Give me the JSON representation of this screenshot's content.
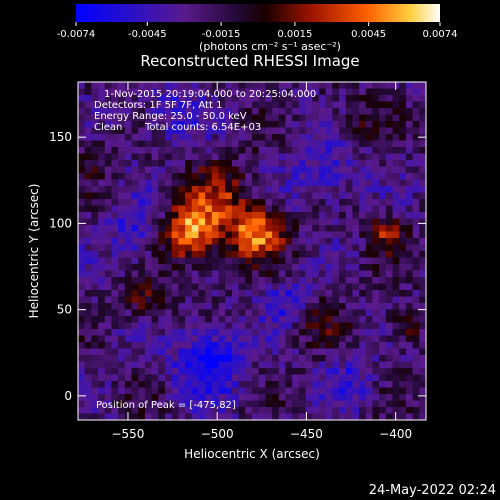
{
  "colorbar": {
    "tick_labels": [
      "-0.0074",
      "-0.0045",
      "-0.0015",
      "0.0015",
      "0.0045",
      "0.0074"
    ],
    "tick_values": [
      -0.0074,
      -0.0045,
      -0.0015,
      0.0015,
      0.0045,
      0.0074
    ],
    "range": [
      -0.0074,
      0.0074
    ],
    "unit_label": "(photons cm⁻² s⁻¹ asec⁻²)",
    "colors": [
      "#0000ff",
      "#3c0a78",
      "#5a1a8c",
      "#000000",
      "#8c1000",
      "#ff5000",
      "#ffc000",
      "#ffffff"
    ]
  },
  "chart_data": {
    "type": "heatmap",
    "title": "Reconstructed RHESSI Image",
    "xlabel": "Heliocentric X (arcsec)",
    "ylabel": "Heliocentric Y (arcsec)",
    "xlim": [
      -578,
      -383
    ],
    "ylim": [
      -14,
      182
    ],
    "x_ticks": [
      -550,
      -500,
      -450,
      -400
    ],
    "x_tick_labels": [
      "−550",
      "−500",
      "−450",
      "−400"
    ],
    "y_ticks": [
      0,
      50,
      100,
      150
    ],
    "y_tick_labels": [
      "0",
      "50",
      "100",
      "150"
    ],
    "annotations": {
      "time_range": "1-Nov-2015 20:19:04.000 to 20:25:04.000",
      "detectors": "Detectors: 1F 5F 7F, Att 1",
      "energy_range": "Energy Range: 25.0 - 50.0 keV",
      "clean_label": "Clean",
      "total_counts": "Total counts: 6.54E+03",
      "peak": "Position of Peak = [-475,82]"
    },
    "sources": [
      {
        "x": -515,
        "y": 95,
        "sigma": 12,
        "amp": 0.0072
      },
      {
        "x": -478,
        "y": 95,
        "sigma": 11,
        "amp": 0.0068
      },
      {
        "x": -500,
        "y": 118,
        "sigma": 13,
        "amp": 0.0035
      },
      {
        "x": -540,
        "y": 55,
        "sigma": 9,
        "amp": 0.0028
      },
      {
        "x": -405,
        "y": 95,
        "sigma": 7,
        "amp": 0.0042
      },
      {
        "x": -395,
        "y": 40,
        "sigma": 7,
        "amp": 0.003
      },
      {
        "x": -445,
        "y": 45,
        "sigma": 10,
        "amp": 0.0022
      },
      {
        "x": -570,
        "y": 140,
        "sigma": 8,
        "amp": 0.0018
      },
      {
        "x": -420,
        "y": 160,
        "sigma": 9,
        "amp": 0.002
      },
      {
        "x": -505,
        "y": 20,
        "sigma": 14,
        "amp": -0.005
      },
      {
        "x": -545,
        "y": 95,
        "sigma": 12,
        "amp": -0.0032
      },
      {
        "x": -460,
        "y": 55,
        "sigma": 10,
        "amp": -0.003
      },
      {
        "x": -440,
        "y": 130,
        "sigma": 14,
        "amp": -0.0028
      },
      {
        "x": -525,
        "y": 165,
        "sigma": 13,
        "amp": -0.0026
      },
      {
        "x": -425,
        "y": 10,
        "sigma": 10,
        "amp": -0.0025
      }
    ],
    "grid_cells": [
      52,
      52
    ]
  },
  "footer": {
    "date_stamp": "24-May-2022 02:24"
  }
}
